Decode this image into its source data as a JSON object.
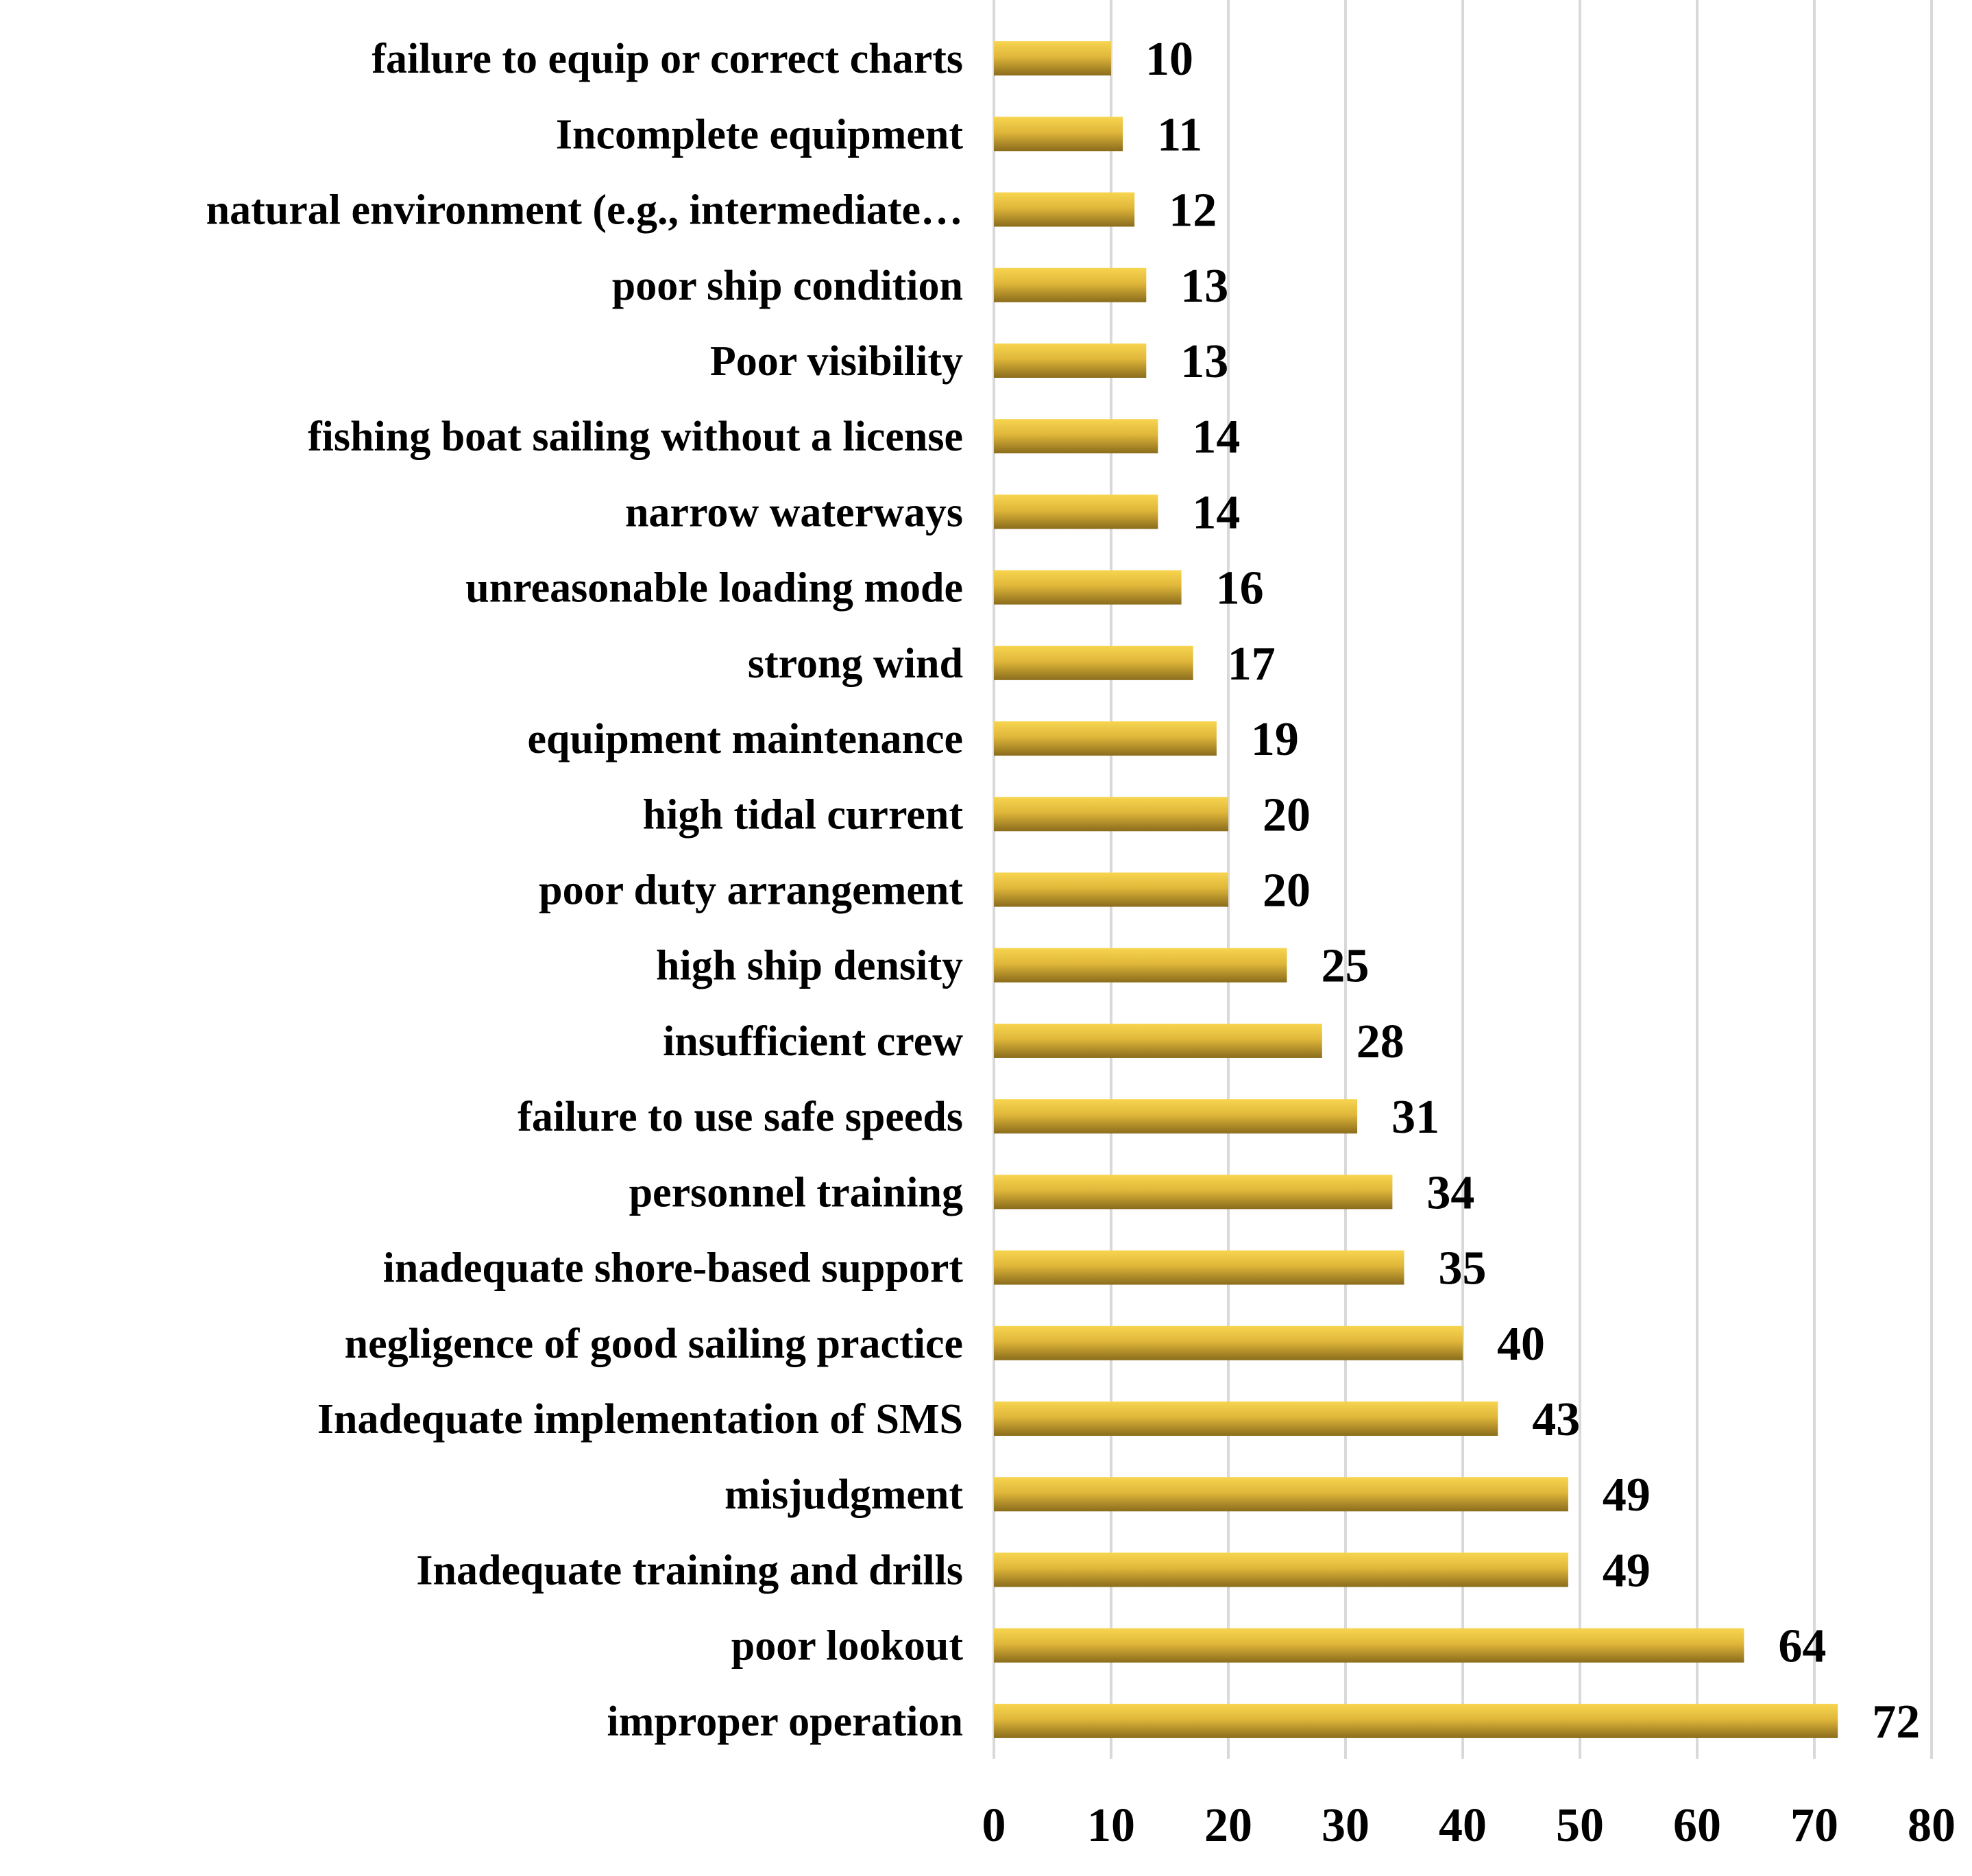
{
  "chart_data": {
    "type": "bar",
    "orientation": "horizontal",
    "title": "",
    "xlabel": "",
    "ylabel": "",
    "xlim": [
      0,
      80
    ],
    "x_ticks": [
      0,
      10,
      20,
      30,
      40,
      50,
      60,
      70,
      80
    ],
    "grid": "vertical",
    "legend": "none",
    "colors": {
      "bar_light": "#f7d550",
      "bar_mid": "#e0b73a",
      "bar_dark": "#8a6c1c",
      "grid": "#d9d9d9"
    },
    "categories": [
      "failure to equip or correct charts",
      "Incomplete equipment",
      "natural environment (e.g., intermediate…",
      "poor ship condition",
      "Poor visibility",
      "fishing boat sailing without a license",
      "narrow waterways",
      "unreasonable loading mode",
      "strong wind",
      "equipment maintenance",
      "high tidal current",
      "poor duty arrangement",
      "high ship density",
      "insufficient crew",
      "failure to use safe speeds",
      "personnel training",
      "inadequate shore-based support",
      "negligence of good sailing practice",
      "Inadequate implementation of SMS",
      "misjudgment",
      "Inadequate training and drills",
      "poor lookout",
      "improper operation"
    ],
    "values": [
      10,
      11,
      12,
      13,
      13,
      14,
      14,
      16,
      17,
      19,
      20,
      20,
      25,
      28,
      31,
      34,
      35,
      40,
      43,
      49,
      49,
      64,
      72
    ]
  }
}
